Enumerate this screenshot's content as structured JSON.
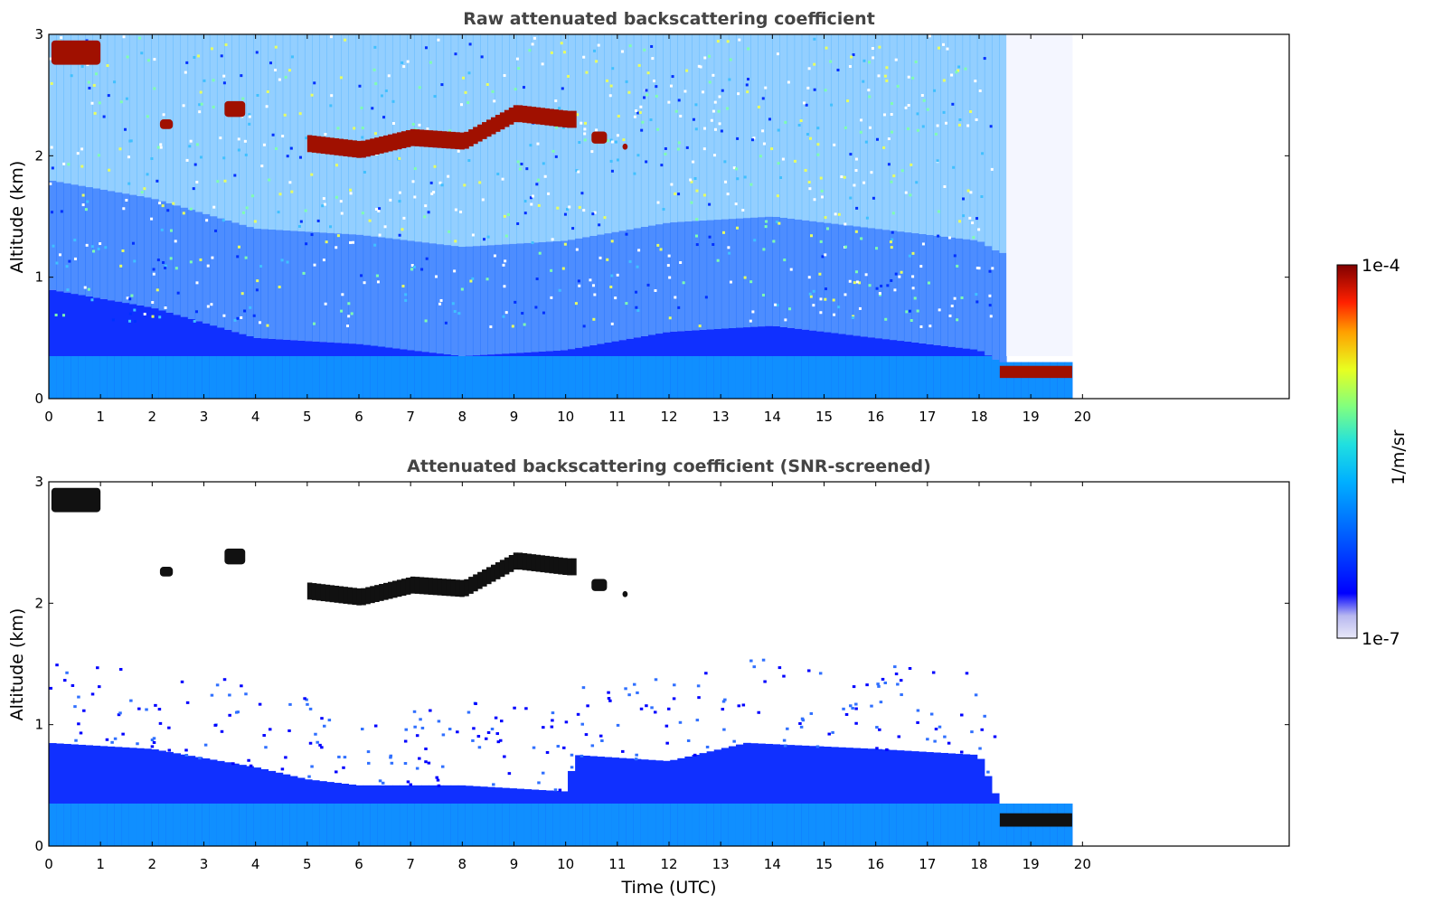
{
  "chart_data": [
    {
      "type": "heatmap",
      "title": "Raw attenuated backscattering coefficient",
      "xlabel": "",
      "ylabel": "Altitude (km)",
      "xlim": [
        0,
        24
      ],
      "ylim": [
        0,
        3
      ],
      "xticks": [
        0,
        1,
        2,
        3,
        4,
        5,
        6,
        7,
        8,
        9,
        10,
        11,
        12,
        13,
        14,
        15,
        16,
        17,
        18,
        19,
        20
      ],
      "yticks": [
        0,
        1,
        2,
        3
      ],
      "data_end_utc": 19.8,
      "features": {
        "boundary_layer_top_km": [
          [
            0,
            0.9
          ],
          [
            2,
            0.75
          ],
          [
            4,
            0.5
          ],
          [
            6,
            0.45
          ],
          [
            8,
            0.35
          ],
          [
            10,
            0.4
          ],
          [
            12,
            0.55
          ],
          [
            14,
            0.6
          ],
          [
            16,
            0.5
          ],
          [
            18,
            0.4
          ],
          [
            18.4,
            0.3
          ]
        ],
        "fog_layer_after_18_4": {
          "t0": 18.4,
          "t1": 19.8,
          "base_km": 0.17,
          "top_km": 0.27
        },
        "cloud_layers": [
          {
            "t0": 0.05,
            "t1": 1.0,
            "base_km": 2.75,
            "top_km": 2.95
          },
          {
            "t0": 2.15,
            "t1": 2.4,
            "base_km": 2.22,
            "top_km": 2.3
          },
          {
            "t0": 3.4,
            "t1": 3.8,
            "base_km": 2.32,
            "top_km": 2.45
          },
          {
            "t0": 5.0,
            "t1": 10.2,
            "base_km": 1.95,
            "top_km": 2.45,
            "profile": [
              [
                5.0,
                2.1
              ],
              [
                6.0,
                2.05
              ],
              [
                7.0,
                2.15
              ],
              [
                8.0,
                2.12
              ],
              [
                9.0,
                2.35
              ],
              [
                10.0,
                2.3
              ]
            ]
          },
          {
            "t0": 10.5,
            "t1": 10.8,
            "base_km": 2.1,
            "top_km": 2.2
          },
          {
            "t0": 11.1,
            "t1": 11.2,
            "base_km": 2.05,
            "top_km": 2.1
          }
        ]
      },
      "colorbar": {
        "min": "1e-7",
        "max": "1e-4",
        "label": "1/m/sr",
        "scale": "log"
      }
    },
    {
      "type": "heatmap",
      "title": "Attenuated backscattering coefficient (SNR-screened)",
      "xlabel": "Time (UTC)",
      "ylabel": "Altitude (km)",
      "xlim": [
        0,
        24
      ],
      "ylim": [
        0,
        3
      ],
      "xticks": [
        0,
        1,
        2,
        3,
        4,
        5,
        6,
        7,
        8,
        9,
        10,
        11,
        12,
        13,
        14,
        15,
        16,
        17,
        18,
        19,
        20
      ],
      "yticks": [
        0,
        1,
        2,
        3
      ],
      "data_end_utc": 19.8,
      "features": {
        "boundary_layer_top_km": [
          [
            0,
            0.85
          ],
          [
            2,
            0.8
          ],
          [
            4,
            0.65
          ],
          [
            5,
            0.55
          ],
          [
            6,
            0.5
          ],
          [
            8,
            0.5
          ],
          [
            10,
            0.45
          ],
          [
            10.2,
            0.75
          ],
          [
            12,
            0.7
          ],
          [
            13.5,
            0.85
          ],
          [
            16,
            0.8
          ],
          [
            18,
            0.75
          ],
          [
            18.4,
            0.35
          ]
        ],
        "fog_layer_after_18_4": {
          "t0": 18.4,
          "t1": 19.8,
          "base_km": 0.16,
          "top_km": 0.27
        },
        "cloud_layers": [
          {
            "t0": 0.05,
            "t1": 1.0,
            "base_km": 2.75,
            "top_km": 2.95
          },
          {
            "t0": 2.15,
            "t1": 2.4,
            "base_km": 2.22,
            "top_km": 2.3
          },
          {
            "t0": 3.4,
            "t1": 3.8,
            "base_km": 2.32,
            "top_km": 2.45
          },
          {
            "t0": 5.0,
            "t1": 10.2,
            "base_km": 1.95,
            "top_km": 2.45,
            "profile": [
              [
                5.0,
                2.1
              ],
              [
                6.0,
                2.05
              ],
              [
                7.0,
                2.15
              ],
              [
                8.0,
                2.12
              ],
              [
                9.0,
                2.35
              ],
              [
                10.0,
                2.3
              ]
            ]
          },
          {
            "t0": 10.5,
            "t1": 10.8,
            "base_km": 2.1,
            "top_km": 2.2
          },
          {
            "t0": 11.1,
            "t1": 11.2,
            "base_km": 2.05,
            "top_km": 2.1
          }
        ]
      },
      "colorbar": {
        "min": "1e-7",
        "max": "1e-4",
        "label": "1/m/sr",
        "scale": "log"
      }
    }
  ],
  "colors": {
    "colormap": [
      "#e8e8f8",
      "#b8b8f0",
      "#0000ff",
      "#0060ff",
      "#00b0ff",
      "#20e0e0",
      "#80ff80",
      "#e8ff20",
      "#ffa000",
      "#ff2000",
      "#a00000",
      "#800000"
    ],
    "cloud_raw": "#a01000",
    "cloud_screened": "#111111"
  }
}
